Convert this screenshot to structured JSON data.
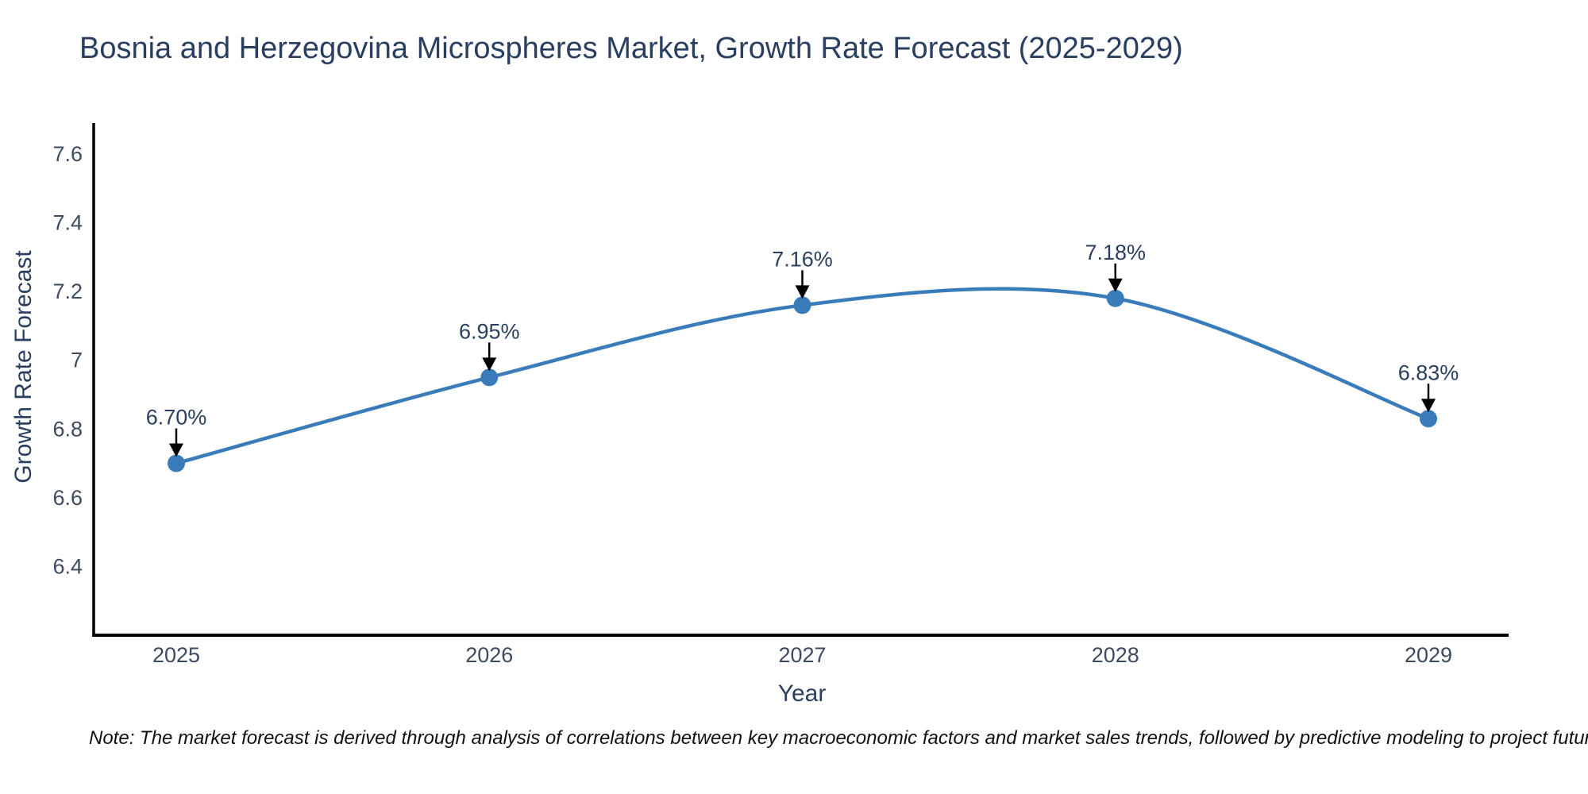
{
  "chart_data": {
    "type": "line",
    "title": "Bosnia and Herzegovina Microspheres Market, Growth Rate Forecast (2025-2029)",
    "xlabel": "Year",
    "ylabel": "Growth Rate Forecast",
    "categories": [
      "2025",
      "2026",
      "2027",
      "2028",
      "2029"
    ],
    "series": [
      {
        "name": "Growth Rate Forecast",
        "values": [
          6.7,
          6.95,
          7.16,
          7.18,
          6.83
        ],
        "point_labels": [
          "6.70%",
          "6.95%",
          "7.16%",
          "7.18%",
          "6.83%"
        ]
      }
    ],
    "ylim": [
      6.2,
      7.69
    ],
    "y_ticks": [
      {
        "value": 6.4,
        "label": "6.4"
      },
      {
        "value": 6.6,
        "label": "6.6"
      },
      {
        "value": 6.8,
        "label": "6.8"
      },
      {
        "value": 7.0,
        "label": "7"
      },
      {
        "value": 7.2,
        "label": "7.2"
      },
      {
        "value": 7.4,
        "label": "7.4"
      },
      {
        "value": 7.6,
        "label": "7.6"
      }
    ],
    "grid": false,
    "legend": "none",
    "line_shape": "spline"
  },
  "note": "Note: The market forecast is derived through analysis of correlations between key macroeconomic factors and market sales trends, followed by predictive modeling to project future sales",
  "colors": {
    "line": "#3a7cb9",
    "marker": "#3a7cb9",
    "axis_line": "#000000",
    "arrow": "#000000",
    "title_text": "#2a3f5f",
    "tick_text": "#3e4a5e",
    "annotation_text": "#2a3f5f",
    "background": "#ffffff"
  }
}
